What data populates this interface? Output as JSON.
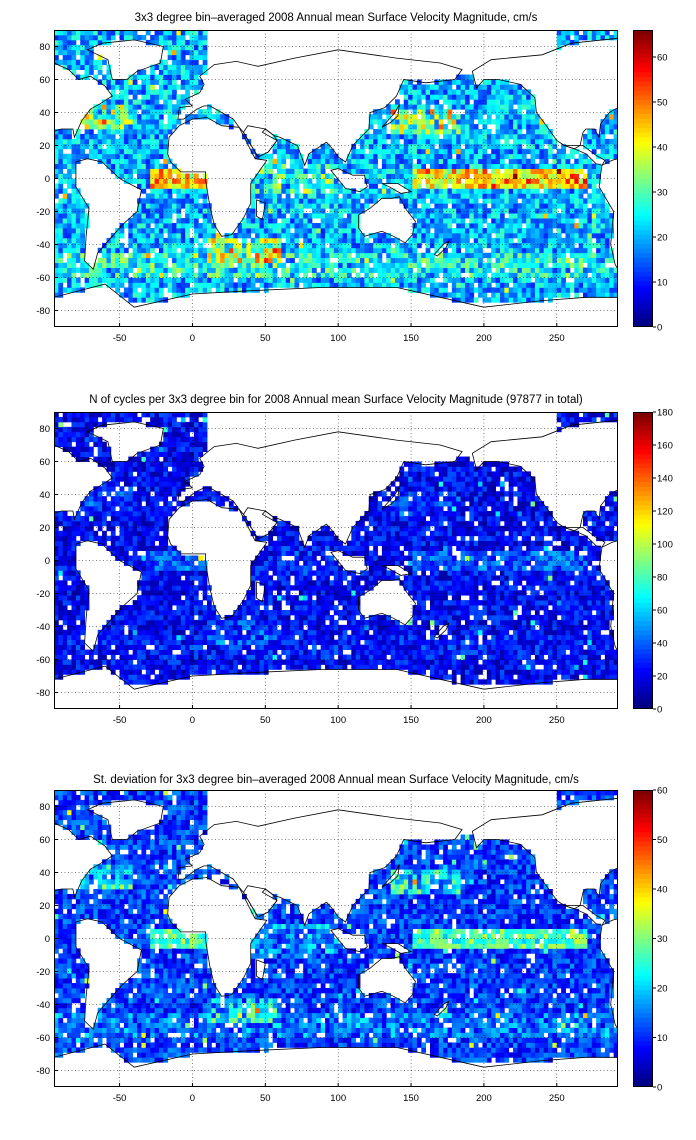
{
  "chart_data": [
    {
      "type": "heatmap",
      "title": "3x3 degree bin–averaged 2008 Annual mean Surface Velocity Magnitude, cm/s",
      "xlim": [
        -95,
        292
      ],
      "ylim": [
        -90,
        90
      ],
      "xticks": [
        -50,
        0,
        50,
        100,
        150,
        200,
        250
      ],
      "yticks": [
        -80,
        -60,
        -40,
        -20,
        0,
        20,
        40,
        60,
        80
      ],
      "colorbar": {
        "min": 0,
        "max": 66,
        "ticks": [
          0,
          10,
          20,
          30,
          40,
          50,
          60
        ]
      },
      "grid": true,
      "field": {
        "seed": 11,
        "base": 0.3,
        "noise": 0.14,
        "feature_scale": 1.0,
        "std_mode": false
      }
    },
    {
      "type": "heatmap",
      "title": "N of cycles per 3x3 degree bin for 2008 Annual mean Surface Velocity Magnitude (97877 in total)",
      "xlim": [
        -95,
        292
      ],
      "ylim": [
        -90,
        90
      ],
      "xticks": [
        -50,
        0,
        50,
        100,
        150,
        200,
        250
      ],
      "yticks": [
        -80,
        -60,
        -40,
        -20,
        0,
        20,
        40,
        60,
        80
      ],
      "colorbar": {
        "min": 0,
        "max": 180,
        "ticks": [
          0,
          20,
          40,
          60,
          80,
          100,
          120,
          140,
          160,
          180
        ]
      },
      "grid": true,
      "field": {
        "seed": 23,
        "base": 0.12,
        "noise": 0.09,
        "feature_scale": 0.25,
        "std_mode": false
      }
    },
    {
      "type": "heatmap",
      "title": "St. deviation for 3x3 degree bin–averaged 2008 Annual mean Surface Velocity Magnitude, cm/s",
      "xlim": [
        -95,
        292
      ],
      "ylim": [
        -90,
        90
      ],
      "xticks": [
        -50,
        0,
        50,
        100,
        150,
        200,
        250
      ],
      "yticks": [
        -80,
        -60,
        -40,
        -20,
        0,
        20,
        40,
        60,
        80
      ],
      "colorbar": {
        "min": 0,
        "max": 60,
        "ticks": [
          0,
          10,
          20,
          30,
          40,
          50,
          60
        ]
      },
      "grid": true,
      "field": {
        "seed": 37,
        "base": 0.18,
        "noise": 0.1,
        "feature_scale": 0.75,
        "std_mode": true
      }
    }
  ]
}
